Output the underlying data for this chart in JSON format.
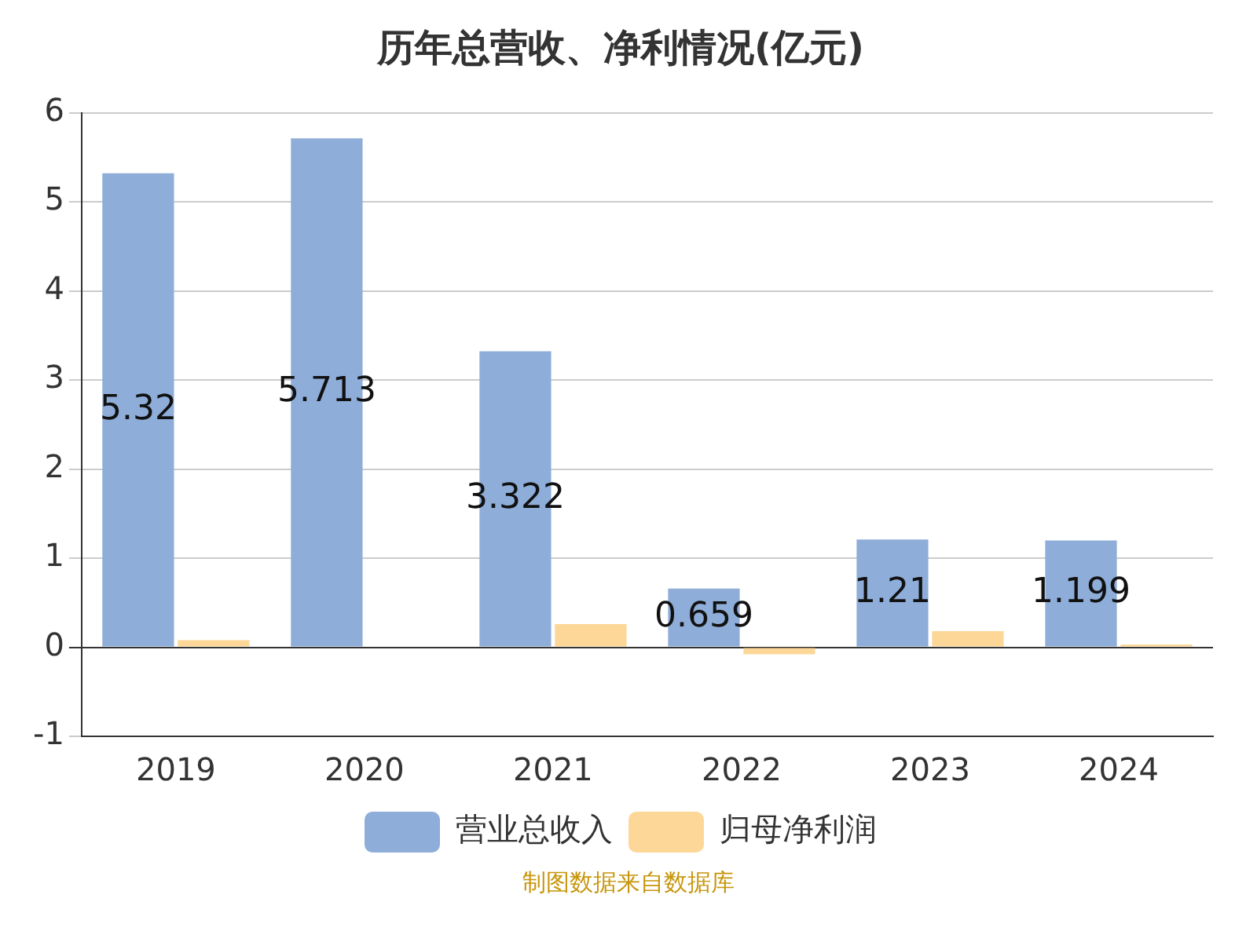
{
  "chart_data": {
    "type": "bar",
    "title": "历年总营收、净利情况(亿元)",
    "categories": [
      "2019",
      "2020",
      "2021",
      "2022",
      "2023",
      "2024"
    ],
    "series": [
      {
        "name": "营业总收入",
        "color": "#8eadd9",
        "values": [
          5.32,
          5.713,
          3.322,
          0.659,
          1.21,
          1.199
        ],
        "value_labels": [
          "5.32",
          "5.713",
          "3.322",
          "0.659",
          "1.21",
          "1.199"
        ]
      },
      {
        "name": "归母净利润",
        "color": "#fdd797",
        "values": [
          0.08,
          null,
          0.26,
          -0.08,
          0.18,
          0.03
        ]
      }
    ],
    "ylim": [
      -1,
      6
    ],
    "yticks": [
      -1,
      0,
      1,
      2,
      3,
      4,
      5,
      6
    ],
    "grid": "y",
    "legend": "bottom",
    "annotations": [
      "制图数据来自数据库"
    ]
  }
}
